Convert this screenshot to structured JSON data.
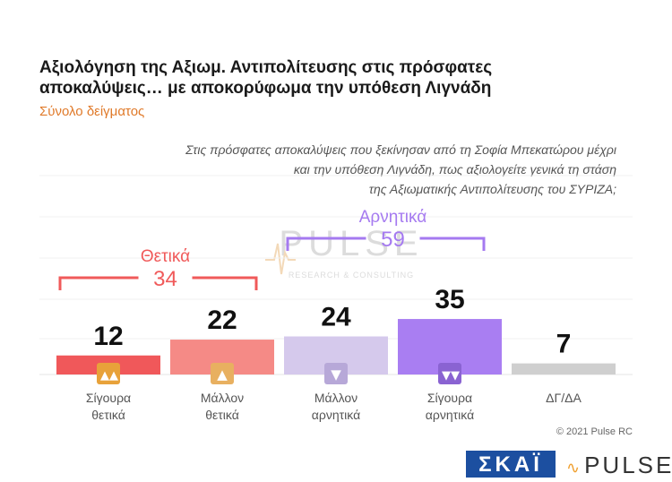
{
  "header": {
    "title_line1": "Αξιολόγηση της Αξιωμ. Αντιπολίτευσης στις πρόσφατες",
    "title_line2": "αποκαλύψεις… με αποκορύφωμα την υπόθεση Λιγνάδη",
    "subtitle": "Σύνολο δείγματος",
    "question_line1": "Στις πρόσφατες αποκαλύψεις που ξεκίνησαν από τη Σοφία Μπεκατώρου μέχρι",
    "question_line2": "και την υπόθεση Λιγνάδη, πως αξιολογείτε γενικά τη στάση",
    "question_line3": "της Αξιωματικής Αντιπολίτευσης του ΣΥΡΙΖΑ;"
  },
  "watermark": {
    "main": "PULSE",
    "sub": "RESEARCH & CONSULTING"
  },
  "chart_data": {
    "type": "bar",
    "categories": [
      [
        "Σίγουρα",
        "θετικά"
      ],
      [
        "Μάλλον",
        "θετικά"
      ],
      [
        "Μάλλον",
        "αρνητικά"
      ],
      [
        "Σίγουρα",
        "αρνητικά"
      ],
      [
        "ΔΓ/ΔΑ"
      ]
    ],
    "values": [
      12,
      22,
      24,
      35,
      7
    ],
    "colors": [
      "#f0585a",
      "#f58a86",
      "#d5c9ec",
      "#a97ef2",
      "#cfcfcf"
    ],
    "icons": [
      "double-thumbs-up-icon",
      "thumbs-up-icon",
      "thumbs-down-icon",
      "double-thumbs-down-icon",
      ""
    ],
    "icon_colors": [
      "#e8a23a",
      "#e8b060",
      "#b7a8d8",
      "#8a63d2",
      ""
    ],
    "groups": [
      {
        "label": "Θετικά",
        "total": "34",
        "color": "#f05a5a",
        "span": [
          0,
          1
        ]
      },
      {
        "label": "Αρνητικά",
        "total": "59",
        "color": "#a57af0",
        "span": [
          2,
          3
        ]
      }
    ],
    "ylim": [
      0,
      40
    ]
  },
  "footer": {
    "copyright": "© 2021 Pulse RC",
    "logo_left": "ΣΚΑΪ",
    "logo_right": "PULSE"
  }
}
